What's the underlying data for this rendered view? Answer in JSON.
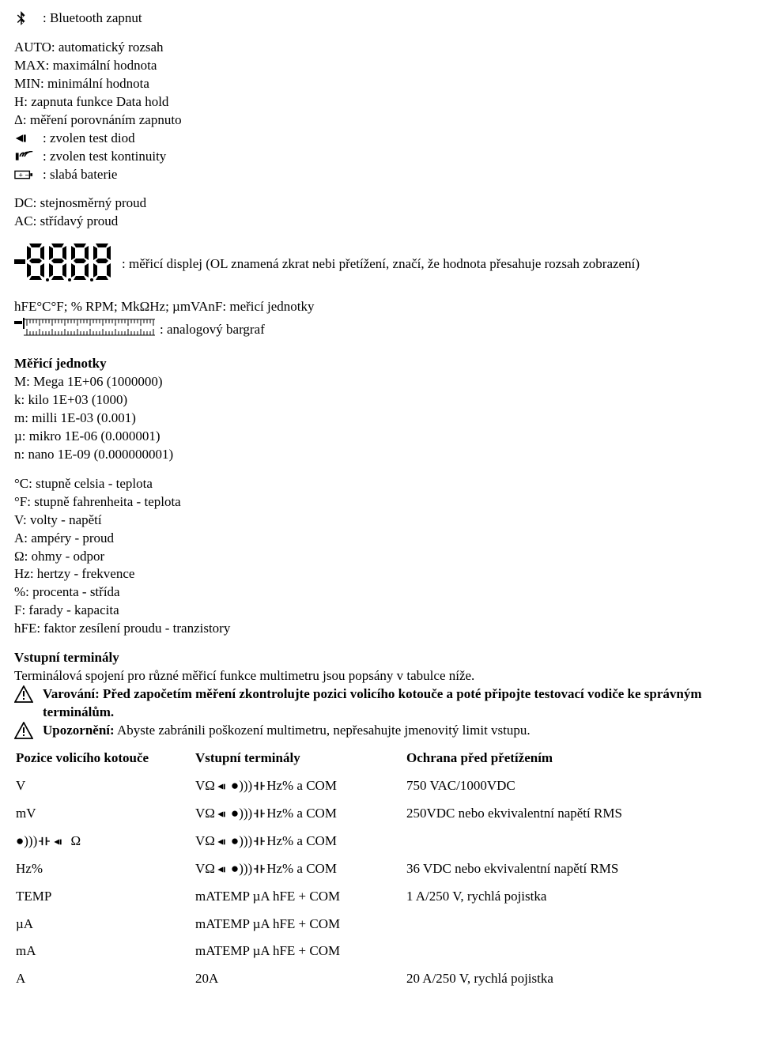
{
  "icons_legend": [
    {
      "key": "bluetooth",
      "text": ": Bluetooth zapnut"
    }
  ],
  "text_legend_1": [
    "AUTO: automatický rozsah",
    "MAX: maximální hodnota",
    "MIN: minimální hodnota",
    "H: zapnuta funkce Data hold",
    "Δ: měření porovnáním zapnuto"
  ],
  "icon_legend_2": [
    {
      "key": "diode",
      "text": ": zvolen test diod"
    },
    {
      "key": "continuity",
      "text": ": zvolen test kontinuity"
    },
    {
      "key": "battery",
      "text": ": slabá baterie"
    }
  ],
  "dc_ac": [
    "DC: stejnosměrný proud",
    "AC: střídavý proud"
  ],
  "display_legend": ": měřicí displej (OL znamená zkrat nebi přetížení, značí, že hodnota přesahuje rozsah zobrazení)",
  "units_line": "hFE°C°F; % RPM; MkΩHz; µmVAnF: meřicí jednotky",
  "bargraph_text": ": analogový bargraf",
  "measuring_units_title": "Měřicí jednotky",
  "measuring_units": [
    "M: Mega 1E+06 (1000000)",
    "k: kilo 1E+03 (1000)",
    "m: milli 1E-03 (0.001)",
    "µ: mikro 1E-06 (0.000001)",
    "n: nano 1E-09 (0.000000001)"
  ],
  "quantities": [
    "°C: stupně celsia - teplota",
    "°F: stupně fahrenheita - teplota",
    "V: volty - napětí",
    "A: ampéry - proud",
    "Ω: ohmy - odpor",
    "Hz: hertzy - frekvence",
    "%: procenta - střída",
    "F: farady - kapacita",
    "hFE: faktor zesílení proudu - tranzistory"
  ],
  "terminals_title": "Vstupní terminály",
  "terminals_intro": "Terminálová spojení pro různé měřicí funkce multimetru jsou popsány v tabulce níže.",
  "warning_bold": "Varování: Před započetím měření zkontrolujte pozici volicího kotouče a poté připojte testovací vodiče ke správným terminálům.",
  "notice_bold": "Upozornění:",
  "notice_rest": " Abyste zabránili poškození multimetru, nepřesahujte jmenovitý limit vstupu.",
  "table": {
    "headers": [
      "Pozice volicího kotouče",
      "Vstupní terminály",
      "Ochrana před přetížením"
    ],
    "rows": [
      {
        "c1_type": "text",
        "c1": "V",
        "c2_type": "term_v",
        "c3": "750 VAC/1000VDC"
      },
      {
        "c1_type": "text",
        "c1": "mV",
        "c2_type": "term_v",
        "c3": "250VDC nebo ekvivalentní napětí RMS"
      },
      {
        "c1_type": "omega_row",
        "c1": "",
        "c2_type": "term_v",
        "c3": ""
      },
      {
        "c1_type": "text",
        "c1": "Hz%",
        "c2_type": "term_v",
        "c3": "36 VDC nebo ekvivalentní napětí RMS"
      },
      {
        "c1_type": "text",
        "c1": "TEMP",
        "c2_type": "term_m",
        "c3": "1 A/250 V, rychlá pojistka",
        "c3_rowspan": 3
      },
      {
        "c1_type": "text",
        "c1": "µA",
        "c2_type": "term_m",
        "c3_skip": true
      },
      {
        "c1_type": "text",
        "c1": "mA",
        "c2_type": "term_m",
        "c3_skip": true
      },
      {
        "c1_type": "text",
        "c1": "A",
        "c2_type": "text",
        "c2": "20A",
        "c3": "20 A/250 V, rychlá pojistka"
      }
    ],
    "term_v_parts": {
      "pre": "VΩ",
      "mid": "●)))",
      "post": "Hz% a COM"
    },
    "term_m": "mATEMP µA hFE + COM"
  }
}
